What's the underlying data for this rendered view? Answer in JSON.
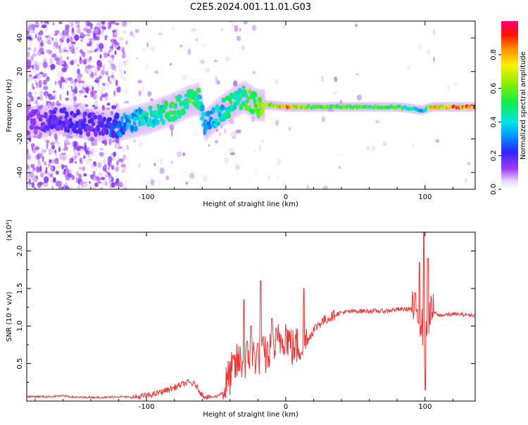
{
  "title": "C2E5.2024.001.11.01.G03",
  "chart_data": [
    {
      "type": "heatmap",
      "xlabel": "Height of straight line (km)",
      "ylabel": "Frequency (Hz)",
      "xlim": [
        -186,
        136
      ],
      "ylim": [
        -50,
        50
      ],
      "xticks": [
        -100,
        0,
        100
      ],
      "xtick_labels": [
        "-100",
        "0",
        "100"
      ],
      "yticks": [
        -40,
        -20,
        0,
        20,
        40
      ],
      "ytick_labels": [
        "-40",
        "-20",
        "0",
        "20",
        "40"
      ],
      "colorbar": {
        "label": "Normalized spectral amplitude",
        "range": [
          0,
          1
        ],
        "ticks": [
          0.0,
          0.2,
          0.4,
          0.6,
          0.8
        ],
        "tick_labels": [
          "0.0",
          "0.2",
          "0.4",
          "0.6",
          "0.8"
        ]
      },
      "ridge": [
        {
          "x": -180,
          "f": -10,
          "a": 0.15
        },
        {
          "x": -165,
          "f": -8,
          "a": 0.2
        },
        {
          "x": -150,
          "f": -10,
          "a": 0.22
        },
        {
          "x": -135,
          "f": -12,
          "a": 0.18
        },
        {
          "x": -120,
          "f": -12,
          "a": 0.3
        },
        {
          "x": -110,
          "f": -10,
          "a": 0.38
        },
        {
          "x": -100,
          "f": -8,
          "a": 0.45
        },
        {
          "x": -90,
          "f": -5,
          "a": 0.5
        },
        {
          "x": -80,
          "f": -2,
          "a": 0.55
        },
        {
          "x": -70,
          "f": 2,
          "a": 0.55
        },
        {
          "x": -62,
          "f": 4,
          "a": 0.5
        },
        {
          "x": -58,
          "f": -12,
          "a": 0.35
        },
        {
          "x": -50,
          "f": -6,
          "a": 0.4
        },
        {
          "x": -40,
          "f": 0,
          "a": 0.5
        },
        {
          "x": -30,
          "f": 5,
          "a": 0.55
        },
        {
          "x": -20,
          "f": 0,
          "a": 0.6
        },
        {
          "x": -10,
          "f": 0,
          "a": 0.75
        },
        {
          "x": 0,
          "f": -1,
          "a": 0.85
        },
        {
          "x": 20,
          "f": -1,
          "a": 0.6
        },
        {
          "x": 40,
          "f": -1,
          "a": 0.6
        },
        {
          "x": 60,
          "f": -1,
          "a": 0.58
        },
        {
          "x": 80,
          "f": -1,
          "a": 0.6
        },
        {
          "x": 90,
          "f": -2,
          "a": 0.45
        },
        {
          "x": 98,
          "f": -3,
          "a": 0.35
        },
        {
          "x": 105,
          "f": -1,
          "a": 0.8
        },
        {
          "x": 120,
          "f": -1,
          "a": 0.9
        },
        {
          "x": 136,
          "f": -1,
          "a": 0.92
        }
      ]
    },
    {
      "type": "line",
      "xlabel": "Height of straight line (km)",
      "ylabel": "SNR (10 * v/v)",
      "scale_label": "(x10⁴)",
      "xlim": [
        -186,
        136
      ],
      "ylim": [
        0,
        2.25
      ],
      "xticks": [
        -100,
        0,
        100
      ],
      "xtick_labels": [
        "-100",
        "0",
        "100"
      ],
      "yticks": [
        0.5,
        1.0,
        1.5,
        2.0
      ],
      "ytick_labels": [
        "0.5",
        "1.0",
        "1.5",
        "2.0"
      ],
      "series": [
        {
          "name": "SNR",
          "color": "#ee3333",
          "x": [
            -186,
            -170,
            -160,
            -150,
            -140,
            -130,
            -120,
            -110,
            -100,
            -95,
            -90,
            -85,
            -80,
            -75,
            -70,
            -65,
            -60,
            -55,
            -50,
            -45,
            -40,
            -35,
            -30,
            -25,
            -20,
            -15,
            -10,
            -5,
            0,
            5,
            10,
            15,
            20,
            25,
            30,
            35,
            40,
            50,
            60,
            70,
            80,
            90,
            95,
            98,
            100,
            102,
            105,
            110,
            120,
            130,
            136
          ],
          "y": [
            0.06,
            0.06,
            0.07,
            0.05,
            0.05,
            0.05,
            0.06,
            0.05,
            0.07,
            0.09,
            0.12,
            0.15,
            0.18,
            0.22,
            0.25,
            0.22,
            0.08,
            0.05,
            0.06,
            0.12,
            0.35,
            0.5,
            0.55,
            0.6,
            0.62,
            0.6,
            0.65,
            0.8,
            0.9,
            0.7,
            0.75,
            0.8,
            0.95,
            1.05,
            1.1,
            1.15,
            1.18,
            1.2,
            1.2,
            1.2,
            1.22,
            1.23,
            1.2,
            1.0,
            0.7,
            1.1,
            1.2,
            1.14,
            1.16,
            1.15,
            1.14
          ]
        }
      ],
      "spikes": [
        {
          "x": -30,
          "y": 1.35
        },
        {
          "x": -25,
          "y": 1.0
        },
        {
          "x": -18,
          "y": 1.6
        },
        {
          "x": -10,
          "y": 1.1
        },
        {
          "x": 13,
          "y": 1.5
        },
        {
          "x": 96,
          "y": 1.85
        },
        {
          "x": 99,
          "y": 2.25
        },
        {
          "x": 100,
          "y": 0.15
        },
        {
          "x": 102,
          "y": 1.9
        }
      ]
    }
  ]
}
